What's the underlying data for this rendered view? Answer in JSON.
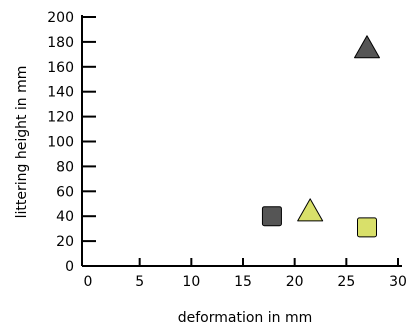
{
  "chart_data": {
    "type": "scatter",
    "xlabel": "deformation in mm",
    "ylabel": "littering height in mm",
    "xlim": [
      0,
      30
    ],
    "ylim": [
      0,
      200
    ],
    "xticks": [
      0,
      5,
      10,
      15,
      20,
      25,
      30
    ],
    "yticks": [
      0,
      20,
      40,
      60,
      80,
      100,
      120,
      140,
      160,
      180,
      200
    ],
    "grid": false,
    "points": [
      {
        "x": 17.8,
        "y": 40,
        "shape": "square",
        "color": "#555555"
      },
      {
        "x": 21.5,
        "y": 43,
        "shape": "triangle",
        "color": "#d9e06a"
      },
      {
        "x": 27.0,
        "y": 31,
        "shape": "square",
        "color": "#d9e06a"
      },
      {
        "x": 27.0,
        "y": 174,
        "shape": "triangle",
        "color": "#555555"
      }
    ]
  }
}
